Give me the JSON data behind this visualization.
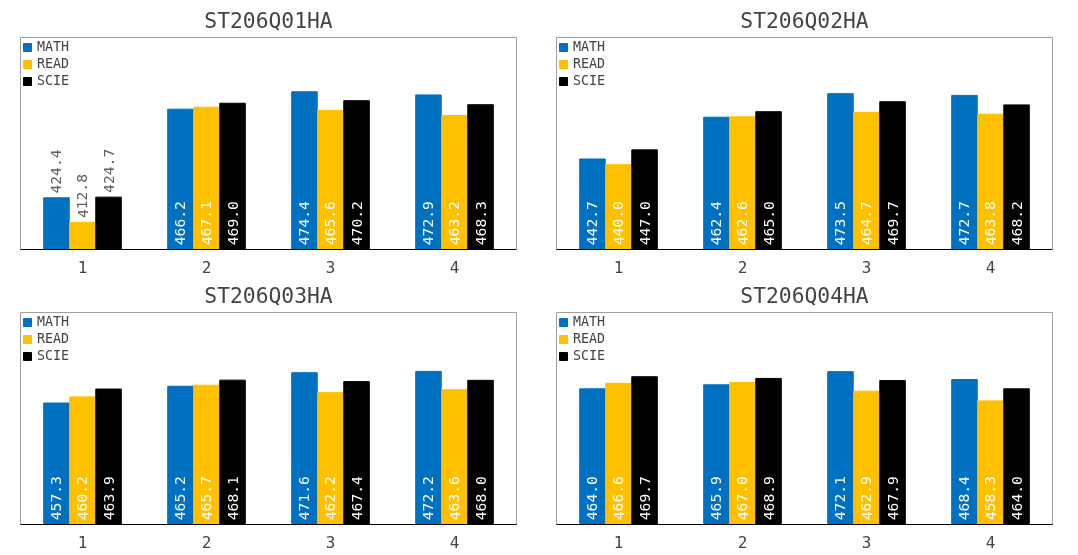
{
  "chart_data": [
    {
      "type": "bar",
      "title": "ST206Q01HA",
      "categories": [
        "1",
        "2",
        "3",
        "4"
      ],
      "ylim": [
        400,
        500
      ],
      "legend": "top left",
      "grid": false,
      "tick_labels": "x",
      "series": [
        {
          "name": "MATH",
          "color": "#0070c0",
          "values": [
            424.4,
            466.2,
            474.4,
            472.9
          ],
          "value_labels": [
            "424.4",
            "466.2",
            "474.4",
            "472.9"
          ]
        },
        {
          "name": "READ",
          "color": "#ffc000",
          "values": [
            412.8,
            467.1,
            465.6,
            463.2
          ],
          "value_labels": [
            "412.8",
            "467.1",
            "465.6",
            "463.2"
          ]
        },
        {
          "name": "SCIE",
          "color": "#000000",
          "values": [
            424.7,
            469.0,
            470.2,
            468.3
          ],
          "value_labels": [
            "424.7",
            "469.0",
            "470.2",
            "468.3"
          ]
        }
      ]
    },
    {
      "type": "bar",
      "title": "ST206Q02HA",
      "categories": [
        "1",
        "2",
        "3",
        "4"
      ],
      "ylim": [
        400,
        500
      ],
      "legend": "top left",
      "grid": false,
      "tick_labels": "x",
      "series": [
        {
          "name": "MATH",
          "color": "#0070c0",
          "values": [
            442.7,
            462.4,
            473.5,
            472.7
          ],
          "value_labels": [
            "442.7",
            "462.4",
            "473.5",
            "472.7"
          ]
        },
        {
          "name": "READ",
          "color": "#ffc000",
          "values": [
            440.0,
            462.6,
            464.7,
            463.8
          ],
          "value_labels": [
            "440.0",
            "462.6",
            "464.7",
            "463.8"
          ]
        },
        {
          "name": "SCIE",
          "color": "#000000",
          "values": [
            447.0,
            465.0,
            469.7,
            468.2
          ],
          "value_labels": [
            "447.0",
            "465.0",
            "469.7",
            "468.2"
          ]
        }
      ]
    },
    {
      "type": "bar",
      "title": "ST206Q03HA",
      "categories": [
        "1",
        "2",
        "3",
        "4"
      ],
      "ylim": [
        400,
        500
      ],
      "legend": "top left",
      "grid": false,
      "tick_labels": "x",
      "series": [
        {
          "name": "MATH",
          "color": "#0070c0",
          "values": [
            457.3,
            465.2,
            471.6,
            472.2
          ],
          "value_labels": [
            "457.3",
            "465.2",
            "471.6",
            "472.2"
          ]
        },
        {
          "name": "READ",
          "color": "#ffc000",
          "values": [
            460.2,
            465.7,
            462.2,
            463.6
          ],
          "value_labels": [
            "460.2",
            "465.7",
            "462.2",
            "463.6"
          ]
        },
        {
          "name": "SCIE",
          "color": "#000000",
          "values": [
            463.9,
            468.1,
            467.4,
            468.0
          ],
          "value_labels": [
            "463.9",
            "468.1",
            "467.4",
            "468.0"
          ]
        }
      ]
    },
    {
      "type": "bar",
      "title": "ST206Q04HA",
      "categories": [
        "1",
        "2",
        "3",
        "4"
      ],
      "ylim": [
        400,
        500
      ],
      "legend": "top left",
      "grid": false,
      "tick_labels": "x",
      "series": [
        {
          "name": "MATH",
          "color": "#0070c0",
          "values": [
            464.0,
            465.9,
            472.1,
            468.4
          ],
          "value_labels": [
            "464.0",
            "465.9",
            "472.1",
            "468.4"
          ]
        },
        {
          "name": "READ",
          "color": "#ffc000",
          "values": [
            466.6,
            467.0,
            462.9,
            458.3
          ],
          "value_labels": [
            "466.6",
            "467.0",
            "462.9",
            "458.3"
          ]
        },
        {
          "name": "SCIE",
          "color": "#000000",
          "values": [
            469.7,
            468.9,
            467.9,
            464.0
          ],
          "value_labels": [
            "469.7",
            "468.9",
            "467.9",
            "464.0"
          ]
        }
      ]
    }
  ]
}
